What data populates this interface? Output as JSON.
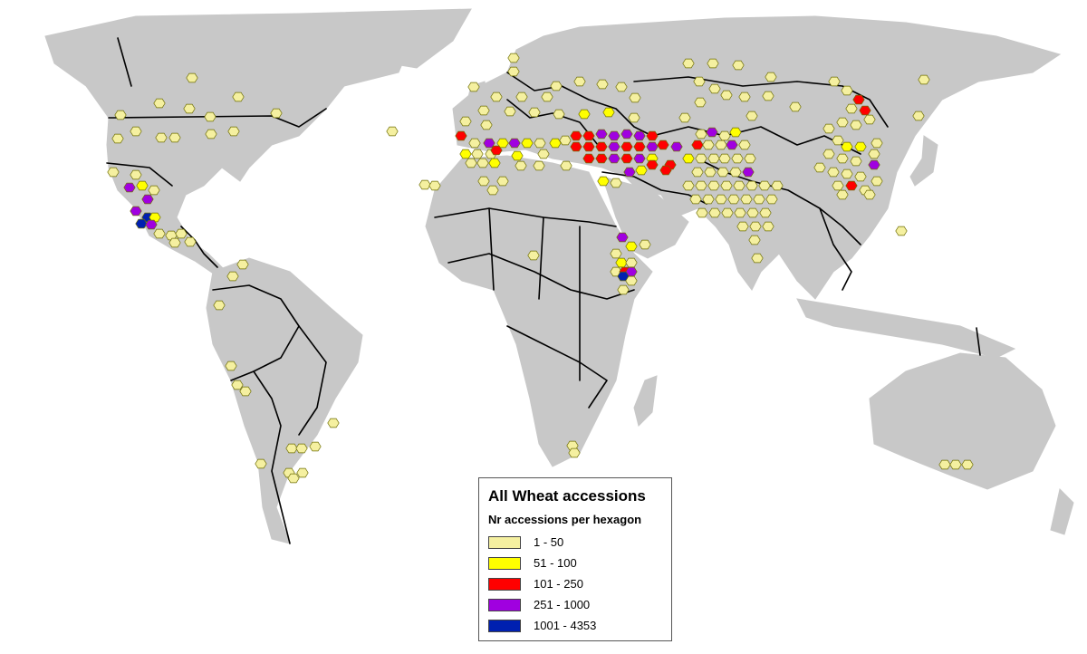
{
  "legend": {
    "title": "All Wheat accessions",
    "subtitle": "Nr accessions per hexagon",
    "classes": [
      {
        "label": "1 - 50",
        "color": "#f5f0a0"
      },
      {
        "label": "51 - 100",
        "color": "#ffff00"
      },
      {
        "label": "101 - 250",
        "color": "#ff0000"
      },
      {
        "label": "251 - 1000",
        "color": "#a000e0"
      },
      {
        "label": "1001 - 4353",
        "color": "#0020b0"
      }
    ]
  },
  "map_style": {
    "land_color": "#c8c8c8",
    "ocean_color": "#ffffff",
    "border_color": "#000000"
  }
}
